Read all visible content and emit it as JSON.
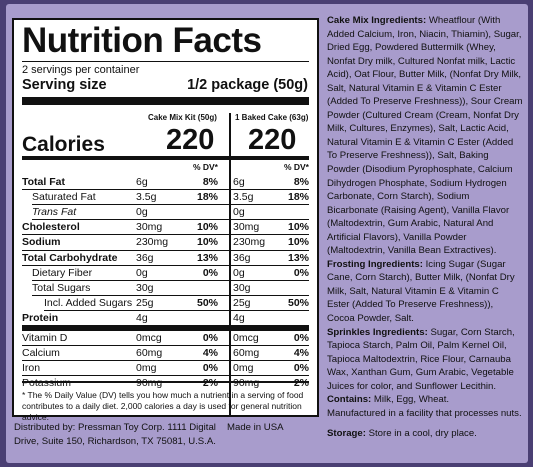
{
  "title": "Nutrition Facts",
  "servings": "2 servings per container",
  "serving_size_label": "Serving size",
  "serving_size_value": "1/2 package (50g)",
  "col1_header": "Cake Mix Kit (50g)",
  "col2_header": "1 Baked Cake (63g)",
  "calories_label": "Calories",
  "calories_1": "220",
  "calories_2": "220",
  "dv_header": "% DV*",
  "rows": [
    {
      "label": "Total Fat",
      "v1": "6g",
      "p1": "8%",
      "v2": "6g",
      "p2": "8%",
      "bold": true,
      "indent": 0
    },
    {
      "label": "Saturated Fat",
      "v1": "3.5g",
      "p1": "18%",
      "v2": "3.5g",
      "p2": "18%",
      "bold": false,
      "indent": 1
    },
    {
      "label": "Trans Fat",
      "v1": "0g",
      "p1": "",
      "v2": "0g",
      "p2": "",
      "bold": false,
      "indent": 1,
      "italic": true
    },
    {
      "label": "Cholesterol",
      "v1": "30mg",
      "p1": "10%",
      "v2": "30mg",
      "p2": "10%",
      "bold": true,
      "indent": 0
    },
    {
      "label": "Sodium",
      "v1": "230mg",
      "p1": "10%",
      "v2": "230mg",
      "p2": "10%",
      "bold": true,
      "indent": 0
    },
    {
      "label": "Total Carbohydrate",
      "v1": "36g",
      "p1": "13%",
      "v2": "36g",
      "p2": "13%",
      "bold": true,
      "indent": 0
    },
    {
      "label": "Dietary Fiber",
      "v1": "0g",
      "p1": "0%",
      "v2": "0g",
      "p2": "0%",
      "bold": false,
      "indent": 1
    },
    {
      "label": "Total Sugars",
      "v1": "30g",
      "p1": "",
      "v2": "30g",
      "p2": "",
      "bold": false,
      "indent": 1
    },
    {
      "label": "Incl. Added Sugars",
      "v1": "25g",
      "p1": "50%",
      "v2": "25g",
      "p2": "50%",
      "bold": false,
      "indent": 2
    },
    {
      "label": "Protein",
      "v1": "4g",
      "p1": "",
      "v2": "4g",
      "p2": "",
      "bold": true,
      "indent": 0
    },
    {
      "label": "Vitamin D",
      "v1": "0mcg",
      "p1": "0%",
      "v2": "0mcg",
      "p2": "0%",
      "bold": false,
      "indent": 0
    },
    {
      "label": "Calcium",
      "v1": "60mg",
      "p1": "4%",
      "v2": "60mg",
      "p2": "4%",
      "bold": false,
      "indent": 0
    },
    {
      "label": "Iron",
      "v1": "0mg",
      "p1": "0%",
      "v2": "0mg",
      "p2": "0%",
      "bold": false,
      "indent": 0
    },
    {
      "label": "Potassium",
      "v1": "90mg",
      "p1": "2%",
      "v2": "90mg",
      "p2": "2%",
      "bold": false,
      "indent": 0
    }
  ],
  "footnote": "* The % Daily Value (DV) tells you how much a nutrient in a serving of food contributes to a daily diet. 2,000 calories a day is used for general nutrition advice.",
  "distributed": "Distributed by: Pressman Toy Corp. 1111 Digital Drive, Suite 150, Richardson, TX 75081, U.S.A.",
  "made_in": "Made in USA",
  "ingredients": {
    "cake_label": "Cake Mix Ingredients:",
    "cake_text": "Wheatflour (With Added Calcium, Iron, Niacin, Thiamin), Sugar, Dried Egg, Powdered Buttermilk (Whey, Nonfat Dry milk, Cultured Nonfat milk, Lactic Acid), Oat Flour, Butter Milk, (Nonfat Dry Milk, Salt, Natural Vitamin E & Vitamin C Ester (Added To Preserve Freshness)), Sour Cream Powder (Cultured Cream (Cream, Nonfat Dry Milk, Cultures, Enzymes), Salt, Lactic Acid, Natural Vitamin E & Vitamin C Ester (Added To Preserve Freshness)), Salt, Baking Powder (Disodium Pyrophosphate, Calcium Dihydrogen Phosphate, Sodium Hydrogen Carbonate, Corn Starch), Sodium Bicarbonate (Raising Agent), Vanilla Flavor (Maltodextrin, Gum Arabic, Natural And Artificial Flavors), Vanilla Powder (Maltodextrin, Vanilla Bean Extractives).",
    "frosting_label": "Frosting Ingredients:",
    "frosting_text": "Icing Sugar (Sugar Cane, Corn Starch), Butter Milk, (Nonfat Dry Milk, Salt, Natural Vitamin E & Vitamin C Ester (Added To Preserve Freshness)), Cocoa Powder, Salt.",
    "sprinkles_label": "Sprinkles Ingredients:",
    "sprinkles_text": "Sugar, Corn Starch, Tapioca Starch, Palm Oil, Palm Kernel Oil, Tapioca Maltodextrin, Rice Flour, Carnauba Wax, Xanthan Gum, Gum Arabic, Vegetable Juices for color, and Sunflower Lecithin.",
    "contains_label": "Contains:",
    "contains_text": "Milk, Egg, Wheat.",
    "facility_text": "Manufactured in a facility that processes nuts.",
    "storage_label": "Storage:",
    "storage_text": "Store in a cool, dry place."
  }
}
